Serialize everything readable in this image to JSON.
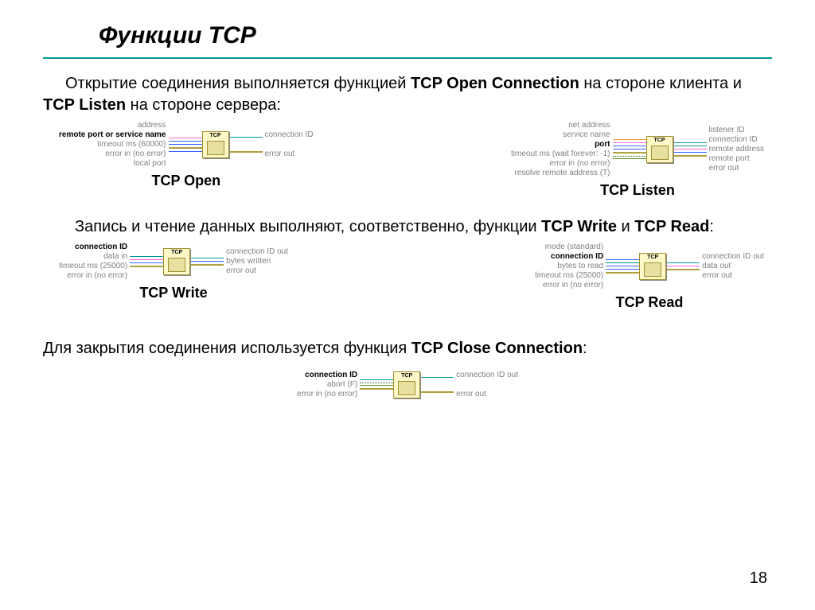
{
  "page_number": "18",
  "title": "Функции TCP",
  "para1": {
    "t1": "Открытие соединения выполняется функцией ",
    "b1": "TCP Open Connection",
    "t2": " на стороне клиента  и ",
    "b2": "TCP Listen",
    "t3": " на стороне сервера:"
  },
  "para2": {
    "t1": "Запись и чтение данных выполняют, соответственно, функции ",
    "b1": "TCP Write",
    "t2": " и ",
    "b2": "TCP Read",
    "t3": ":"
  },
  "para3": {
    "t1": "Для закрытия соединения используется функция ",
    "b1": "TCP Close Connection",
    "t2": ":"
  },
  "captions": {
    "open": "TCP Open",
    "listen": "TCP Listen",
    "write": "TCP Write",
    "read": "TCP Read"
  },
  "node_header": "TCP",
  "diagrams": {
    "open": {
      "left": [
        {
          "text": "address",
          "bold": false
        },
        {
          "text": "remote port or service name",
          "bold": true
        },
        {
          "text": "timeout ms (60000)",
          "bold": false
        },
        {
          "text": "error in (no error)",
          "bold": false
        },
        {
          "text": "local port",
          "bold": false
        }
      ],
      "right": [
        {
          "text": "connection ID",
          "bold": false
        },
        {
          "text": "",
          "bold": false
        },
        {
          "text": "error out",
          "bold": false
        }
      ]
    },
    "listen": {
      "left": [
        {
          "text": "net address",
          "bold": false
        },
        {
          "text": "service name",
          "bold": false
        },
        {
          "text": "port",
          "bold": true
        },
        {
          "text": "timeout ms (wait forever: -1)",
          "bold": false
        },
        {
          "text": "error in (no error)",
          "bold": false
        },
        {
          "text": "resolve remote address (T)",
          "bold": false
        }
      ],
      "right": [
        {
          "text": "listener ID",
          "bold": false
        },
        {
          "text": "connection ID",
          "bold": false
        },
        {
          "text": "remote address",
          "bold": false
        },
        {
          "text": "remote port",
          "bold": false
        },
        {
          "text": "error out",
          "bold": false
        }
      ]
    },
    "write": {
      "left": [
        {
          "text": "connection ID",
          "bold": true
        },
        {
          "text": "data in",
          "bold": false
        },
        {
          "text": "timeout ms (25000)",
          "bold": false
        },
        {
          "text": "error in (no error)",
          "bold": false
        }
      ],
      "right": [
        {
          "text": "connection ID out",
          "bold": false
        },
        {
          "text": "bytes written",
          "bold": false
        },
        {
          "text": "error out",
          "bold": false
        }
      ]
    },
    "read": {
      "left": [
        {
          "text": "mode (standard)",
          "bold": false
        },
        {
          "text": "connection ID",
          "bold": true
        },
        {
          "text": "bytes to read",
          "bold": false
        },
        {
          "text": "timeout ms (25000)",
          "bold": false
        },
        {
          "text": "error in (no error)",
          "bold": false
        }
      ],
      "right": [
        {
          "text": "connection ID out",
          "bold": false
        },
        {
          "text": "data out",
          "bold": false
        },
        {
          "text": "error out",
          "bold": false
        }
      ]
    },
    "close": {
      "left": [
        {
          "text": "connection ID",
          "bold": true
        },
        {
          "text": "abort (F)",
          "bold": false
        },
        {
          "text": "error in (no error)",
          "bold": false
        }
      ],
      "right": [
        {
          "text": "connection ID out",
          "bold": false
        },
        {
          "text": "",
          "bold": false
        },
        {
          "text": "error out",
          "bold": false
        }
      ]
    }
  },
  "wire_colors": {
    "open_left": [
      "w-pink",
      "w-blue",
      "w-blue",
      "w-olive",
      "w-blue"
    ],
    "open_right": [
      "w-teal",
      "spacer",
      "w-olive"
    ],
    "listen_left": [
      "w-orange",
      "w-pink",
      "w-blue",
      "w-blue",
      "w-olive",
      "w-green"
    ],
    "listen_right": [
      "w-teal",
      "w-teal",
      "w-pink",
      "w-blue",
      "w-olive"
    ],
    "write_left": [
      "w-teal",
      "w-pink",
      "w-blue",
      "w-olive"
    ],
    "write_right": [
      "w-teal",
      "w-blue",
      "w-olive"
    ],
    "read_left": [
      "w-blue",
      "w-teal",
      "w-blue",
      "w-blue",
      "w-olive"
    ],
    "read_right": [
      "w-teal",
      "w-pink",
      "w-olive"
    ],
    "close_left": [
      "w-teal",
      "w-green",
      "w-olive"
    ],
    "close_right": [
      "w-teal",
      "spacer",
      "w-olive"
    ]
  }
}
